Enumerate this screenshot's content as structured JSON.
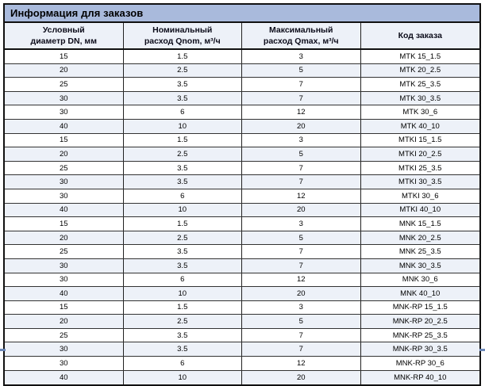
{
  "colors": {
    "title_bg": "#a9badc",
    "header_bg": "#edf1f8",
    "row_alt_bg": "#edf1f8",
    "border_dark": "#111111",
    "row_divider": "#333333",
    "page_mark_blue": "#6b87b8",
    "text": "#000000"
  },
  "table": {
    "title": "Информация для заказов",
    "columns": [
      {
        "line1": "Условный",
        "line2": "диаметр DN, мм"
      },
      {
        "line1": "Номинальный",
        "line2": "расход Qnom, м³/ч"
      },
      {
        "line1": "Максимальный",
        "line2": "расход Qmax, м³/ч"
      },
      {
        "line1": "Код заказа",
        "line2": ""
      }
    ],
    "rows": [
      [
        "15",
        "1.5",
        "3",
        "MTK 15_1.5"
      ],
      [
        "20",
        "2.5",
        "5",
        "MTK 20_2.5"
      ],
      [
        "25",
        "3.5",
        "7",
        "MTK 25_3.5"
      ],
      [
        "30",
        "3.5",
        "7",
        "MTK 30_3.5"
      ],
      [
        "30",
        "6",
        "12",
        "MTK 30_6"
      ],
      [
        "40",
        "10",
        "20",
        "MTK 40_10"
      ],
      [
        "15",
        "1.5",
        "3",
        "MTKI 15_1.5"
      ],
      [
        "20",
        "2.5",
        "5",
        "MTKI 20_2.5"
      ],
      [
        "25",
        "3.5",
        "7",
        "MTKI 25_3.5"
      ],
      [
        "30",
        "3.5",
        "7",
        "MTKI 30_3.5"
      ],
      [
        "30",
        "6",
        "12",
        "MTKI 30_6"
      ],
      [
        "40",
        "10",
        "20",
        "MTKI 40_10"
      ],
      [
        "15",
        "1.5",
        "3",
        "MNK 15_1.5"
      ],
      [
        "20",
        "2.5",
        "5",
        "MNK 20_2.5"
      ],
      [
        "25",
        "3.5",
        "7",
        "MNK 25_3.5"
      ],
      [
        "30",
        "3.5",
        "7",
        "MNK 30_3.5"
      ],
      [
        "30",
        "6",
        "12",
        "MNK 30_6"
      ],
      [
        "40",
        "10",
        "20",
        "MNK 40_10"
      ],
      [
        "15",
        "1.5",
        "3",
        "MNK-RP 15_1.5"
      ],
      [
        "20",
        "2.5",
        "5",
        "MNK-RP 20_2.5"
      ],
      [
        "25",
        "3.5",
        "7",
        "MNK-RP 25_3.5"
      ],
      [
        "30",
        "3.5",
        "7",
        "MNK-RP 30_3.5"
      ],
      [
        "30",
        "6",
        "12",
        "MNK-RP 30_6"
      ],
      [
        "40",
        "10",
        "20",
        "MNK-RP 40_10"
      ]
    ]
  }
}
